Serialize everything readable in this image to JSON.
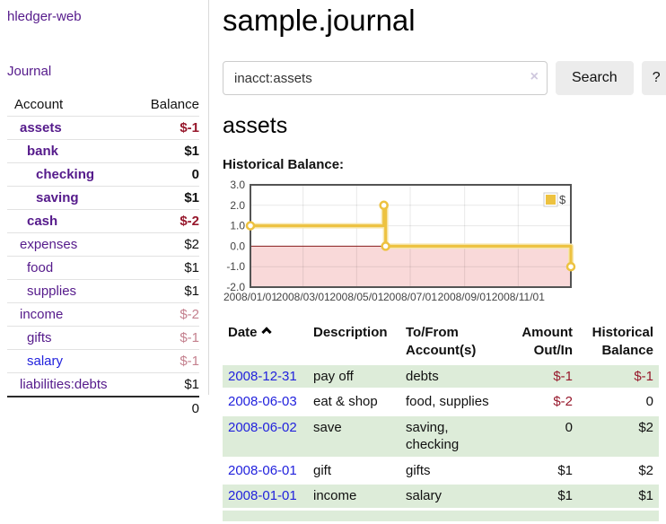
{
  "app": {
    "title": "hledger-web",
    "nav_journal": "Journal"
  },
  "colors": {
    "link_purple": "#551a8b",
    "link_blue": "#2222dd",
    "negative": "#97182c",
    "negative_faded": "#c4808e",
    "row_green": "#ddecd9",
    "series_gold": "#edc240",
    "negative_region": "#f9d9d9",
    "zero_line": "#8b2020"
  },
  "sidebar": {
    "header": {
      "account": "Account",
      "balance": "Balance"
    },
    "accounts": [
      {
        "name": "assets",
        "indent": 1,
        "bold": true,
        "balance": "$-1",
        "balance_style": "neg"
      },
      {
        "name": "bank",
        "indent": 2,
        "bold": true,
        "balance": "$1",
        "balance_style": ""
      },
      {
        "name": "checking",
        "indent": 3,
        "bold": true,
        "balance": "0",
        "balance_style": ""
      },
      {
        "name": "saving",
        "indent": 3,
        "bold": true,
        "balance": "$1",
        "balance_style": ""
      },
      {
        "name": "cash",
        "indent": 2,
        "bold": true,
        "balance": "$-2",
        "balance_style": "neg"
      },
      {
        "name": "expenses",
        "indent": 1,
        "bold": false,
        "balance": "$2",
        "balance_style": ""
      },
      {
        "name": "food",
        "indent": 2,
        "bold": false,
        "balance": "$1",
        "balance_style": ""
      },
      {
        "name": "supplies",
        "indent": 2,
        "bold": false,
        "balance": "$1",
        "balance_style": ""
      },
      {
        "name": "income",
        "indent": 1,
        "bold": false,
        "balance": "$-2",
        "balance_style": "faded"
      },
      {
        "name": "gifts",
        "indent": 2,
        "bold": false,
        "balance": "$-1",
        "balance_style": "faded"
      },
      {
        "name": "salary",
        "indent": 2,
        "bold": false,
        "balance": "$-1",
        "balance_style": "faded",
        "link_color": "blue"
      },
      {
        "name": "liabilities:debts",
        "indent": 1,
        "bold": false,
        "balance": "$1",
        "balance_style": ""
      }
    ],
    "total": "0"
  },
  "header": {
    "title": "sample.journal"
  },
  "search": {
    "value": "inacct:assets",
    "clear_label": "×",
    "button_label": "Search",
    "help_label": "?"
  },
  "account_page": {
    "title": "assets",
    "chart_label": "Historical Balance:"
  },
  "chart_data": {
    "type": "line",
    "step": true,
    "title": "Historical Balance:",
    "x_range": [
      "2008/01/01",
      "2008/12/31"
    ],
    "ylim": [
      -2,
      3
    ],
    "y_ticks": [
      "3.0",
      "2.0",
      "1.0",
      "0.0",
      "-1.0",
      "-2.0"
    ],
    "x_ticks": [
      "2008/01/01",
      "2008/03/01",
      "2008/05/01",
      "2008/07/01",
      "2008/09/01",
      "2008/11/01"
    ],
    "series": [
      {
        "name": "$",
        "color": "#edc240",
        "points": [
          [
            "2008/01/01",
            1
          ],
          [
            "2008/06/01",
            2
          ],
          [
            "2008/06/03",
            0
          ],
          [
            "2008/12/31",
            -1
          ]
        ]
      }
    ],
    "legend": {
      "label": "$",
      "position": "top-right"
    },
    "negative_region_color": "#f9d9d9",
    "zero_line_color": "#8b2020",
    "grid": true
  },
  "transactions": {
    "headers": {
      "date": "Date",
      "description": "Description",
      "accounts": "To/From Account(s)",
      "amount": "Amount Out/In",
      "balance": "Historical Balance"
    },
    "rows": [
      {
        "date": "2008-12-31",
        "description": "pay off",
        "accounts": "debts",
        "amount": "$-1",
        "amount_neg": true,
        "balance": "$-1",
        "balance_neg": true
      },
      {
        "date": "2008-06-03",
        "description": "eat & shop",
        "accounts": "food, supplies",
        "amount": "$-2",
        "amount_neg": true,
        "balance": "0",
        "balance_neg": false
      },
      {
        "date": "2008-06-02",
        "description": "save",
        "accounts": "saving, checking",
        "amount": "0",
        "amount_neg": false,
        "balance": "$2",
        "balance_neg": false
      },
      {
        "date": "2008-06-01",
        "description": "gift",
        "accounts": "gifts",
        "amount": "$1",
        "amount_neg": false,
        "balance": "$2",
        "balance_neg": false
      },
      {
        "date": "2008-01-01",
        "description": "income",
        "accounts": "salary",
        "amount": "$1",
        "amount_neg": false,
        "balance": "$1",
        "balance_neg": false
      }
    ],
    "trailing_empty_row": true
  }
}
